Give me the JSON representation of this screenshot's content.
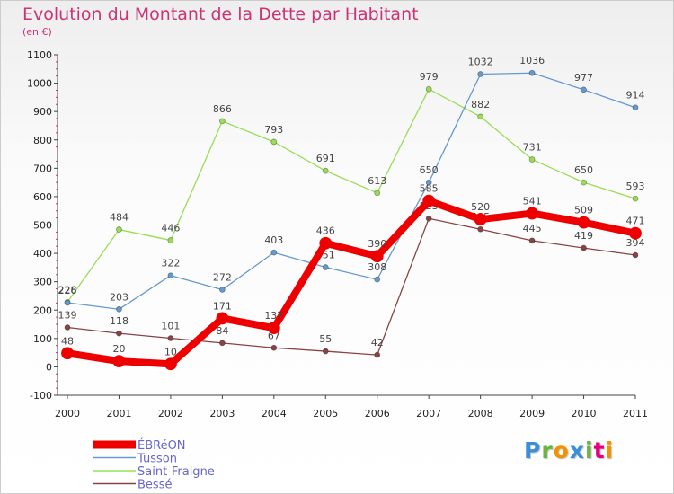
{
  "header": {
    "title": "Evolution du Montant de la Dette par Habitant",
    "subtitle": "(en €)"
  },
  "logo": {
    "text": "Proxiti",
    "letters": [
      {
        "ch": "P",
        "color": "#3a8fd8"
      },
      {
        "ch": "r",
        "color": "#6cb33f"
      },
      {
        "ch": "o",
        "color": "#f39200"
      },
      {
        "ch": "x",
        "color": "#3a8fd8"
      },
      {
        "ch": "i",
        "color": "#6cb33f"
      },
      {
        "ch": "t",
        "color": "#e6007e"
      },
      {
        "ch": "i",
        "color": "#f39200"
      }
    ]
  },
  "chart_data": {
    "type": "line",
    "title": "Evolution du Montant de la Dette par Habitant",
    "subtitle": "(en €)",
    "x": [
      "2000",
      "2001",
      "2002",
      "2003",
      "2004",
      "2005",
      "2006",
      "2007",
      "2008",
      "2009",
      "2010",
      "2011"
    ],
    "ylim": [
      -100,
      1100
    ],
    "yticks": [
      -100,
      0,
      100,
      200,
      300,
      400,
      500,
      600,
      700,
      800,
      900,
      1000,
      1100
    ],
    "grid": false,
    "legend_position": "bottom-left",
    "series": [
      {
        "name": "Saint-Fraigne",
        "color": "#99dd55",
        "values": [
          228,
          484,
          446,
          866,
          793,
          691,
          613,
          979,
          882,
          731,
          650,
          593
        ]
      },
      {
        "name": "Tusson",
        "color": "#6699cc",
        "values": [
          226,
          203,
          322,
          272,
          403,
          351,
          308,
          650,
          1032,
          1036,
          977,
          914
        ]
      },
      {
        "name": "Bessé",
        "color": "#884444",
        "values": [
          139,
          118,
          101,
          84,
          67,
          55,
          42,
          523,
          485,
          445,
          419,
          394
        ]
      },
      {
        "name": "ÉBRéON",
        "color": "#ee0000",
        "values": [
          48,
          20,
          10,
          171,
          137,
          436,
          390,
          585,
          520,
          541,
          509,
          471
        ]
      }
    ],
    "legend_order": [
      "ÉBRéON",
      "Tusson",
      "Saint-Fraigne",
      "Bessé"
    ]
  }
}
